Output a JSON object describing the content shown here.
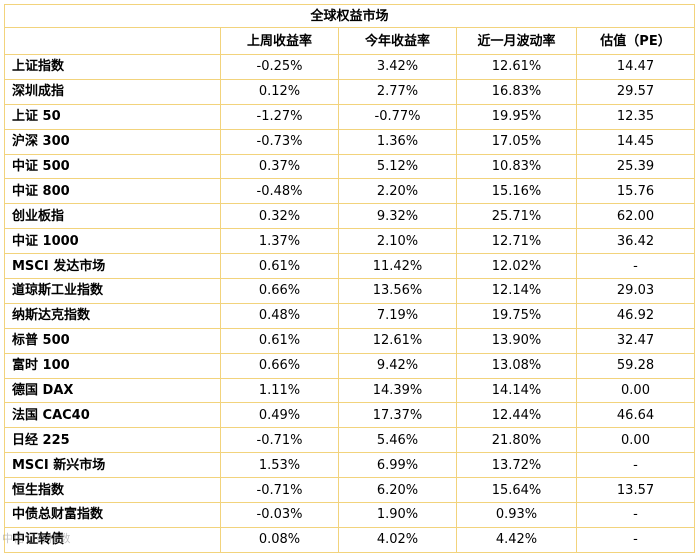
{
  "table": {
    "title": "全球权益市场",
    "headers": [
      "",
      "上周收益率",
      "今年收益率",
      "近一月波动率",
      "估值（PE）"
    ],
    "rows": [
      [
        "上证指数",
        "-0.25%",
        "3.42%",
        "12.61%",
        "14.47"
      ],
      [
        "深圳成指",
        "0.12%",
        "2.77%",
        "16.83%",
        "29.57"
      ],
      [
        "上证 50",
        "-1.27%",
        "-0.77%",
        "19.95%",
        "12.35"
      ],
      [
        "沪深 300",
        "-0.73%",
        "1.36%",
        "17.05%",
        "14.45"
      ],
      [
        "中证 500",
        "0.37%",
        "5.12%",
        "10.83%",
        "25.39"
      ],
      [
        "中证 800",
        "-0.48%",
        "2.20%",
        "15.16%",
        "15.76"
      ],
      [
        "创业板指",
        "0.32%",
        "9.32%",
        "25.71%",
        "62.00"
      ],
      [
        "中证 1000",
        "1.37%",
        "2.10%",
        "12.71%",
        "36.42"
      ],
      [
        "MSCI 发达市场",
        "0.61%",
        "11.42%",
        "12.02%",
        "-"
      ],
      [
        "道琼斯工业指数",
        "0.66%",
        "13.56%",
        "12.14%",
        "29.03"
      ],
      [
        "纳斯达克指数",
        "0.48%",
        "7.19%",
        "19.75%",
        "46.92"
      ],
      [
        "标普 500",
        "0.61%",
        "12.61%",
        "13.90%",
        "32.47"
      ],
      [
        "富时 100",
        "0.66%",
        "9.42%",
        "13.08%",
        "59.28"
      ],
      [
        "德国 DAX",
        "1.11%",
        "14.39%",
        "14.14%",
        "0.00"
      ],
      [
        "法国 CAC40",
        "0.49%",
        "17.37%",
        "12.44%",
        "46.64"
      ],
      [
        "日经 225",
        "-0.71%",
        "5.46%",
        "21.80%",
        "0.00"
      ],
      [
        "MSCI 新兴市场",
        "1.53%",
        "6.99%",
        "13.72%",
        "-"
      ],
      [
        "恒生指数",
        "-0.71%",
        "6.20%",
        "15.64%",
        "13.57"
      ],
      [
        "中债总财富指数",
        "-0.03%",
        "1.90%",
        "0.93%",
        "-"
      ],
      [
        "中证转债",
        "0.08%",
        "4.02%",
        "4.42%",
        "-"
      ]
    ]
  },
  "watermark": "中信证券指数"
}
